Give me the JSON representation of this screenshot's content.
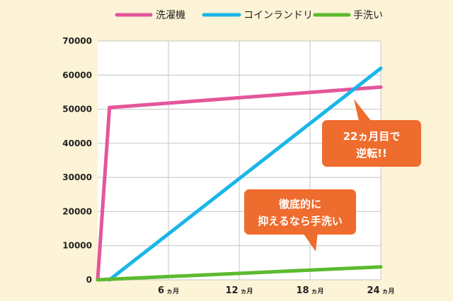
{
  "chart_data": {
    "type": "line",
    "x": [
      0,
      1,
      24
    ],
    "x_ticks": [
      {
        "num": "6",
        "unit": "ヵ月",
        "x": 6
      },
      {
        "num": "12",
        "unit": "ヵ月",
        "x": 12
      },
      {
        "num": "18",
        "unit": "ヵ月",
        "x": 18
      },
      {
        "num": "24",
        "unit": "ヵ月",
        "x": 24
      }
    ],
    "xlim": [
      0,
      24
    ],
    "ylim": [
      0,
      70000
    ],
    "y_ticks": [
      "0",
      "10000",
      "20000",
      "30000",
      "40000",
      "50000",
      "60000",
      "70000"
    ],
    "grid": true,
    "legend_position": "top",
    "series": [
      {
        "name": "洗濯機",
        "color": "#e4569a",
        "points": [
          [
            0,
            0
          ],
          [
            1,
            50500
          ],
          [
            24,
            56500
          ]
        ]
      },
      {
        "name": "コインランドリー",
        "color": "#19b6e8",
        "points": [
          [
            1,
            0
          ],
          [
            24,
            62000
          ]
        ]
      },
      {
        "name": "手洗い",
        "color": "#5dba2f",
        "points": [
          [
            0,
            0
          ],
          [
            24,
            3800
          ]
        ]
      }
    ],
    "annotations": [
      {
        "lines": [
          "22ヵ月目で",
          "逆転!!"
        ],
        "color": "#ee6c2d"
      },
      {
        "lines": [
          "徹底的に",
          "抑えるなら手洗い"
        ],
        "color": "#ee6c2d"
      }
    ]
  }
}
